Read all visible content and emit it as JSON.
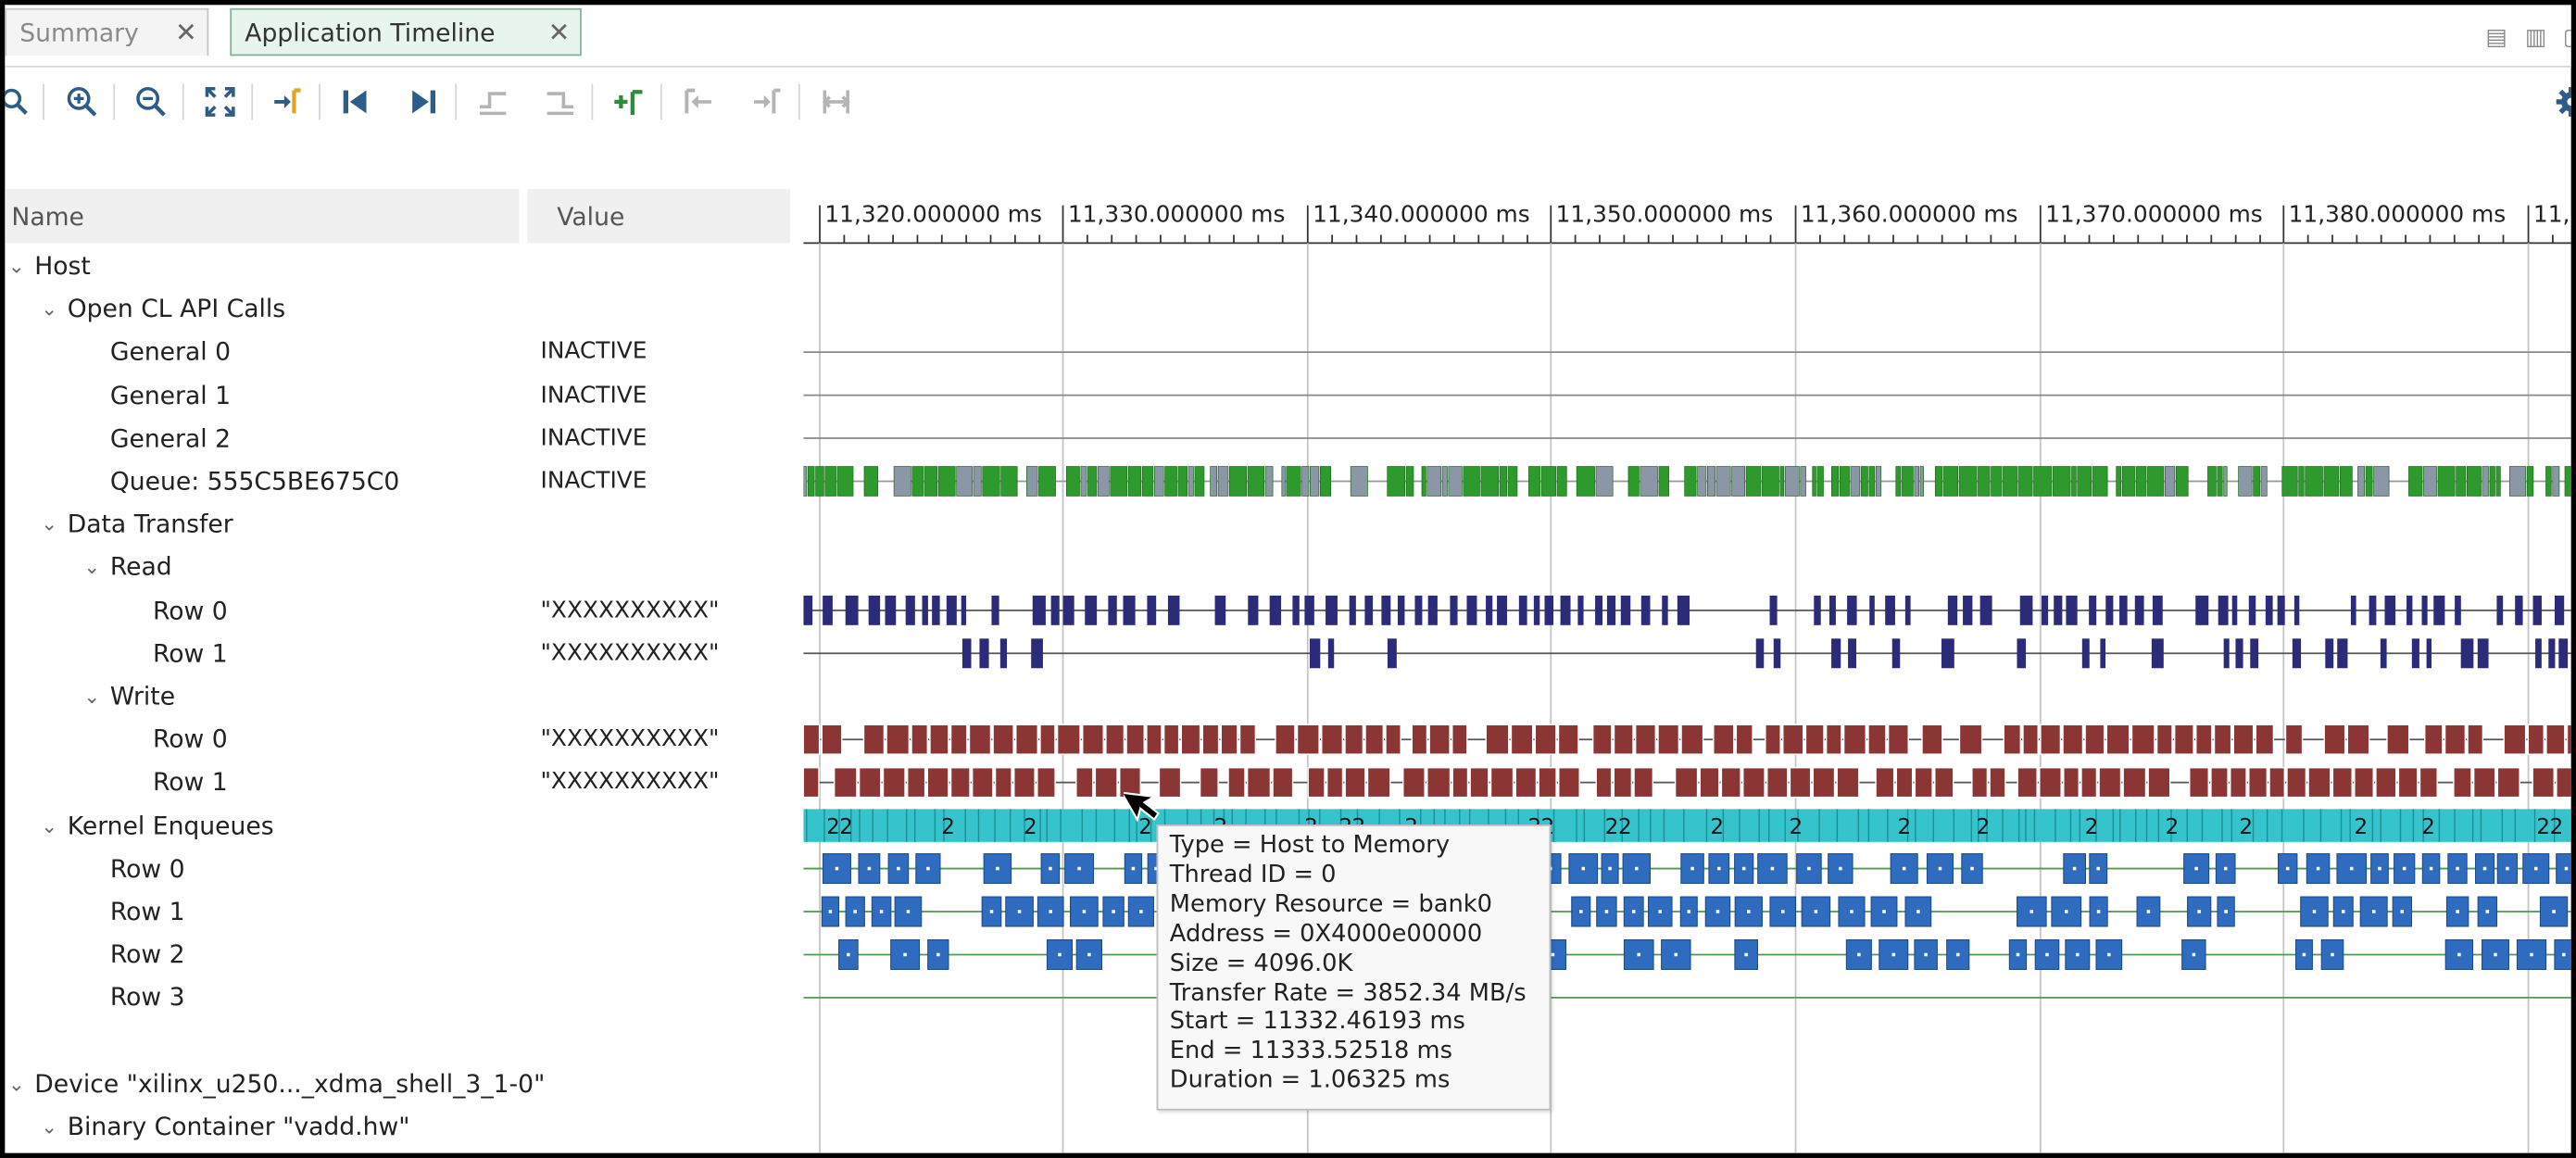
{
  "tabs": [
    {
      "label": "Summary",
      "active": false
    },
    {
      "label": "Application Timeline",
      "active": true
    }
  ],
  "toolbar": {
    "icons": [
      "search-icon",
      "zoom-in-icon",
      "zoom-out-icon",
      "zoom-fit-icon",
      "go-to-cursor-icon",
      "go-to-start-icon",
      "go-to-end-icon",
      "previous-transition-icon",
      "next-transition-icon",
      "add-marker-icon",
      "previous-marker-icon",
      "next-marker-icon",
      "swap-cursors-icon",
      "settings-icon"
    ]
  },
  "columns": {
    "name": "Name",
    "value": "Value"
  },
  "ruler": [
    "11,320.000000 ms",
    "11,330.000000 ms",
    "11,340.000000 ms",
    "11,350.000000 ms",
    "11,360.000000 ms",
    "11,370.000000 ms",
    "11,380.000000 ms",
    "11,3"
  ],
  "tree": [
    {
      "label": "Host",
      "value": "",
      "level": 0,
      "expander": true
    },
    {
      "label": "Open CL API Calls",
      "value": "",
      "level": 1,
      "expander": true
    },
    {
      "label": "General 0",
      "value": "INACTIVE",
      "level": 2,
      "expander": false
    },
    {
      "label": "General 1",
      "value": "INACTIVE",
      "level": 2,
      "expander": false
    },
    {
      "label": "General 2",
      "value": "INACTIVE",
      "level": 2,
      "expander": false
    },
    {
      "label": "Queue: 555C5BE675C0",
      "value": "INACTIVE",
      "level": 2,
      "expander": false
    },
    {
      "label": "Data Transfer",
      "value": "",
      "level": 1,
      "expander": true
    },
    {
      "label": "Read",
      "value": "",
      "level": 2,
      "expander": true
    },
    {
      "label": "Row 0",
      "value": "\"XXXXXXXXXX\"",
      "level": 3,
      "expander": false
    },
    {
      "label": "Row 1",
      "value": "\"XXXXXXXXXX\"",
      "level": 3,
      "expander": false
    },
    {
      "label": "Write",
      "value": "",
      "level": 2,
      "expander": true
    },
    {
      "label": "Row 0",
      "value": "\"XXXXXXXXXX\"",
      "level": 3,
      "expander": false
    },
    {
      "label": "Row 1",
      "value": "\"XXXXXXXXXX\"",
      "level": 3,
      "expander": false
    },
    {
      "label": "Kernel Enqueues",
      "value": "",
      "level": 1,
      "expander": true
    },
    {
      "label": "Row 0",
      "value": "",
      "level": 2,
      "expander": false
    },
    {
      "label": "Row 1",
      "value": "",
      "level": 2,
      "expander": false
    },
    {
      "label": "Row 2",
      "value": "",
      "level": 2,
      "expander": false
    },
    {
      "label": "Row 3",
      "value": "",
      "level": 2,
      "expander": false
    },
    {
      "label": "",
      "value": "",
      "level": 0,
      "expander": false
    },
    {
      "label": "Device \"xilinx_u250..._xdma_shell_3_1-0\"",
      "value": "",
      "level": 0,
      "expander": true
    },
    {
      "label": "Binary Container \"vadd.hw\"",
      "value": "",
      "level": 1,
      "expander": true
    }
  ],
  "kernel_marker": "2",
  "tooltip": {
    "lines": [
      "Type = Host to Memory",
      "Thread ID = 0",
      "Memory Resource = bank0",
      "Address = 0X4000e00000",
      "Size = 4096.0K",
      "Transfer Rate = 3852.34 MB/s",
      "Start = 11332.46193 ms",
      "End = 11333.52518 ms",
      "Duration = 1.06325 ms"
    ]
  },
  "colors": {
    "queue_green": "#2e9a2e",
    "queue_grey": "#8b97a6",
    "read_navy": "#2b2b7a",
    "write_maroon": "#8b3535",
    "kernel_cyan": "#35c4cc",
    "kernel_blue": "#2f6bbf",
    "grid": "#c4c4c4"
  }
}
